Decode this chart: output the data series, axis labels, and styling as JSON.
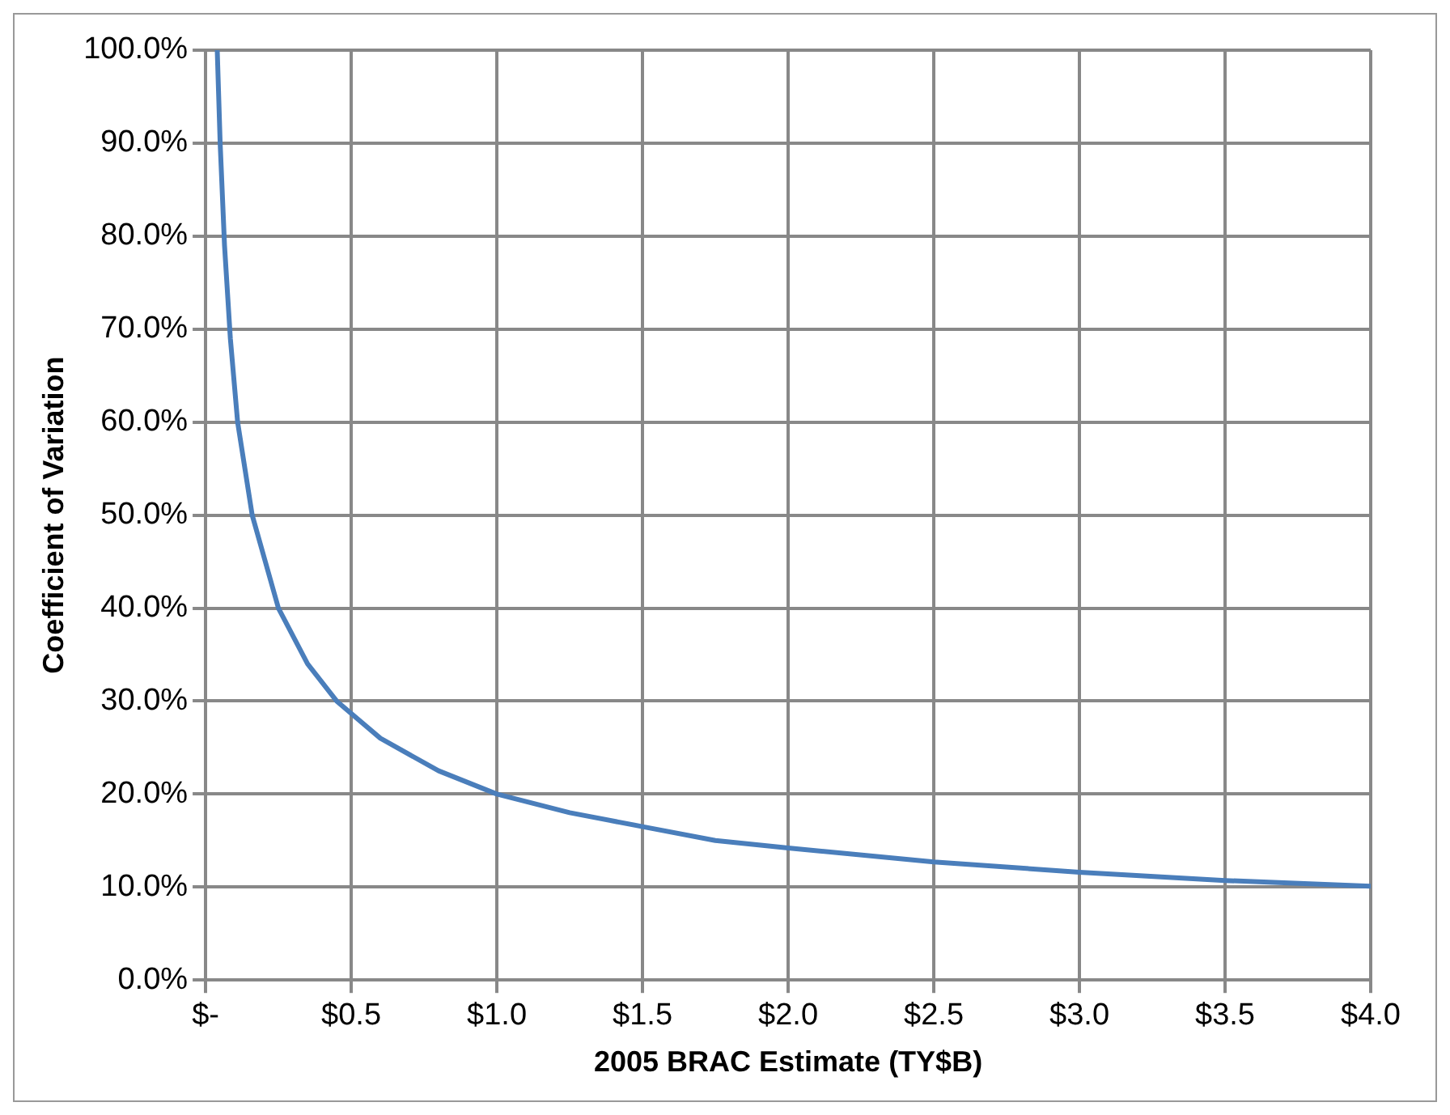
{
  "chart_data": {
    "type": "line",
    "xlabel": "2005 BRAC Estimate (TY$B)",
    "ylabel": "Coefficient of Variation",
    "xlim": [
      0,
      4
    ],
    "ylim": [
      0,
      100
    ],
    "xticks": [
      {
        "value": 0,
        "label": "$-"
      },
      {
        "value": 0.5,
        "label": "$0.5"
      },
      {
        "value": 1,
        "label": "$1.0"
      },
      {
        "value": 1.5,
        "label": "$1.5"
      },
      {
        "value": 2,
        "label": "$2.0"
      },
      {
        "value": 2.5,
        "label": "$2.5"
      },
      {
        "value": 3,
        "label": "$3.0"
      },
      {
        "value": 3.5,
        "label": "$3.5"
      },
      {
        "value": 4,
        "label": "$4.0"
      }
    ],
    "yticks": [
      {
        "value": 0,
        "label": "0.0%"
      },
      {
        "value": 10,
        "label": "10.0%"
      },
      {
        "value": 20,
        "label": "20.0%"
      },
      {
        "value": 30,
        "label": "30.0%"
      },
      {
        "value": 40,
        "label": "40.0%"
      },
      {
        "value": 50,
        "label": "50.0%"
      },
      {
        "value": 60,
        "label": "60.0%"
      },
      {
        "value": 70,
        "label": "70.0%"
      },
      {
        "value": 80,
        "label": "80.0%"
      },
      {
        "value": 90,
        "label": "90.0%"
      },
      {
        "value": 100,
        "label": "100.0%"
      }
    ],
    "series": [
      {
        "color": "#4a7ebb",
        "x": [
          0.04,
          0.05,
          0.065,
          0.085,
          0.11,
          0.16,
          0.25,
          0.35,
          0.45,
          0.6,
          0.8,
          1,
          1.25,
          1.5,
          1.75,
          2,
          2.5,
          3,
          3.5,
          4
        ],
        "values": [
          100,
          90,
          79,
          69,
          60,
          50,
          40,
          34,
          30,
          26,
          22.5,
          20,
          18,
          16.5,
          15,
          14.2,
          12.7,
          11.6,
          10.7,
          10.1
        ]
      }
    ],
    "grid": true,
    "legend": false,
    "marker": "none",
    "line_style": "solid"
  }
}
